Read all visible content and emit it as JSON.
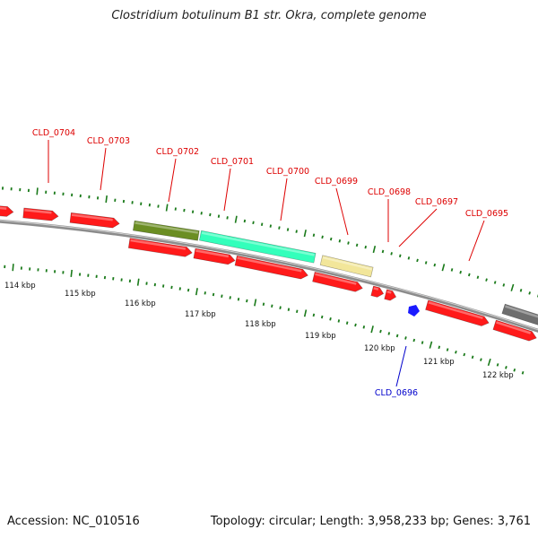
{
  "title": "Clostridium botulinum B1 str. Okra, complete genome",
  "footer": {
    "accession": "Accession: NC_010516",
    "summary": "Topology: circular; Length: 3,958,233 bp; Genes: 3,761"
  },
  "colors": {
    "gene_red": "#ff1a1a",
    "gene_olive": "#6b8e23",
    "gene_aqua": "#33ffbb",
    "gene_khaki": "#f2e69a",
    "gene_grey": "#6e6e6e",
    "gene_blue": "#1a1aff",
    "label_red": "#dd0000",
    "label_blue": "#0000cc",
    "tick_green": "#1a7a1a",
    "backbone": "#8c8c8c"
  },
  "kbp_ticks": [
    "114 kbp",
    "115 kbp",
    "116 kbp",
    "117 kbp",
    "118 kbp",
    "119 kbp",
    "120 kbp",
    "121 kbp",
    "122 kbp"
  ],
  "gene_labels": [
    {
      "id": "CLD_0704",
      "color": "red"
    },
    {
      "id": "CLD_0703",
      "color": "red"
    },
    {
      "id": "CLD_0702",
      "color": "red"
    },
    {
      "id": "CLD_0701",
      "color": "red"
    },
    {
      "id": "CLD_0700",
      "color": "red"
    },
    {
      "id": "CLD_0699",
      "color": "red"
    },
    {
      "id": "CLD_0698",
      "color": "red"
    },
    {
      "id": "CLD_0697",
      "color": "red"
    },
    {
      "id": "CLD_0695",
      "color": "red"
    },
    {
      "id": "CLD_0696",
      "color": "blue"
    }
  ]
}
